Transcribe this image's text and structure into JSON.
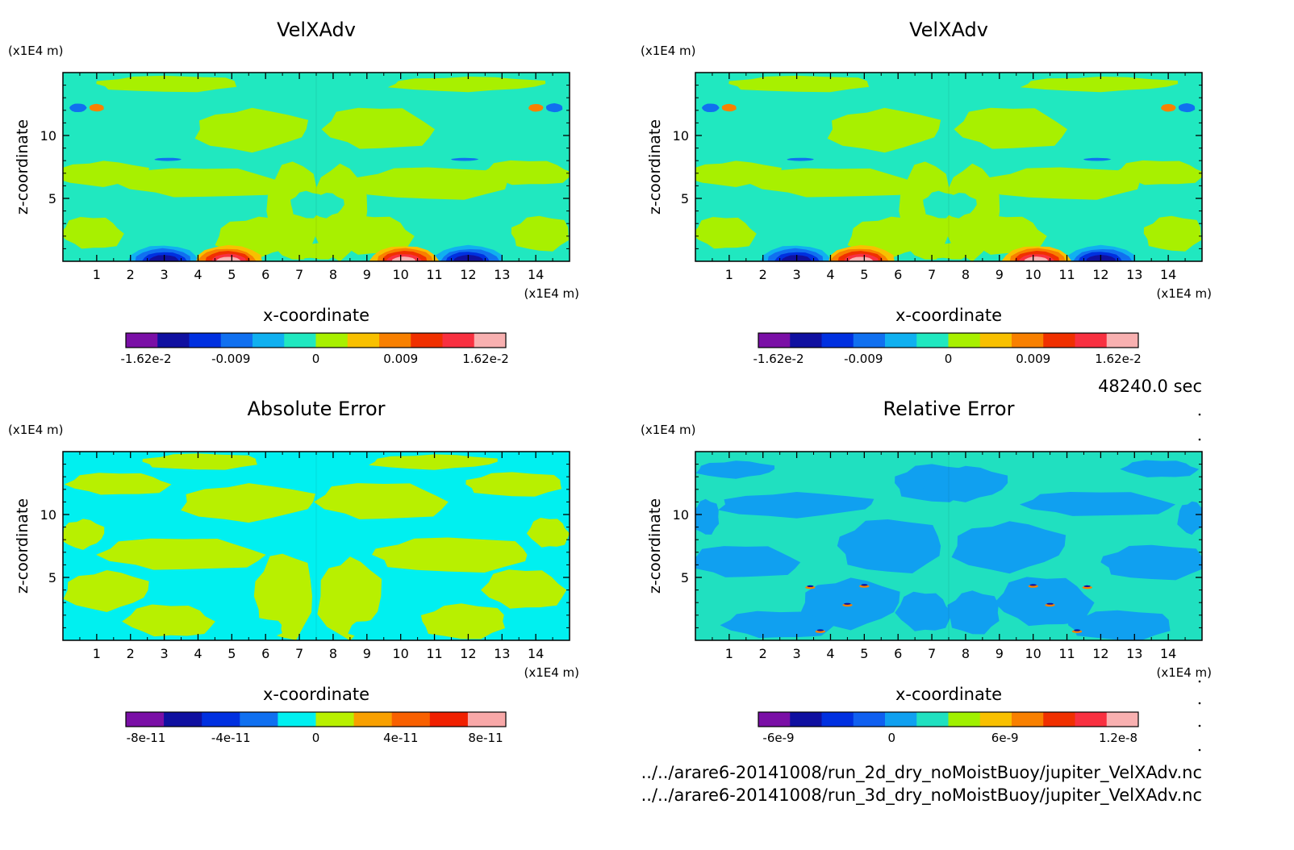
{
  "time_label": "48240.0 sec",
  "files": [
    "../../arare6-20141008/run_2d_dry_noMoistBuoy/jupiter_VelXAdv.nc",
    "../../arare6-20141008/run_3d_dry_noMoistBuoy/jupiter_VelXAdv.nc"
  ],
  "chart_data": [
    {
      "type": "heatmap",
      "title": "VelXAdv",
      "xlabel": "x-coordinate",
      "ylabel": "z-coordinate",
      "x_unit": "(x1E4 m)",
      "y_unit": "(x1E4 m)",
      "xlim": [
        0,
        15
      ],
      "ylim": [
        0,
        15
      ],
      "x_ticks": [
        "1",
        "2",
        "3",
        "4",
        "5",
        "6",
        "7",
        "8",
        "9",
        "10",
        "11",
        "12",
        "13",
        "14"
      ],
      "y_ticks": [
        "5",
        "10"
      ],
      "colorbar": {
        "colors": [
          "#7a0fa6",
          "#1010a0",
          "#0030e0",
          "#1070f0",
          "#10b0f0",
          "#20e8c0",
          "#a8f000",
          "#f8c000",
          "#f88000",
          "#f03000",
          "#f83040",
          "#f8b0b0"
        ],
        "labels": [
          "-1.62e-2",
          "-0.009",
          "0",
          "0.009",
          "1.62e-2"
        ]
      }
    },
    {
      "type": "heatmap",
      "title": "VelXAdv",
      "xlabel": "x-coordinate",
      "ylabel": "z-coordinate",
      "x_unit": "(x1E4 m)",
      "y_unit": "(x1E4 m)",
      "xlim": [
        0,
        15
      ],
      "ylim": [
        0,
        15
      ],
      "x_ticks": [
        "1",
        "2",
        "3",
        "4",
        "5",
        "6",
        "7",
        "8",
        "9",
        "10",
        "11",
        "12",
        "13",
        "14"
      ],
      "y_ticks": [
        "5",
        "10"
      ],
      "colorbar": {
        "colors": [
          "#7a0fa6",
          "#1010a0",
          "#0030e0",
          "#1070f0",
          "#10b0f0",
          "#20e8c0",
          "#a8f000",
          "#f8c000",
          "#f88000",
          "#f03000",
          "#f83040",
          "#f8b0b0"
        ],
        "labels": [
          "-1.62e-2",
          "-0.009",
          "0",
          "0.009",
          "1.62e-2"
        ]
      }
    },
    {
      "type": "heatmap",
      "title": "Absolute Error",
      "xlabel": "x-coordinate",
      "ylabel": "z-coordinate",
      "x_unit": "(x1E4 m)",
      "y_unit": "(x1E4 m)",
      "xlim": [
        0,
        15
      ],
      "ylim": [
        0,
        15
      ],
      "x_ticks": [
        "1",
        "2",
        "3",
        "4",
        "5",
        "6",
        "7",
        "8",
        "9",
        "10",
        "11",
        "12",
        "13",
        "14"
      ],
      "y_ticks": [
        "5",
        "10"
      ],
      "colorbar": {
        "colors": [
          "#7a0fa6",
          "#1010a0",
          "#0030e0",
          "#1070f0",
          "#00f0f0",
          "#b8f000",
          "#f8a000",
          "#f86000",
          "#f02000",
          "#f8a8a8"
        ],
        "labels": [
          "-8e-11",
          "-4e-11",
          "0",
          "4e-11",
          "8e-11"
        ]
      }
    },
    {
      "type": "heatmap",
      "title": "Relative Error",
      "xlabel": "x-coordinate",
      "ylabel": "z-coordinate",
      "x_unit": "(x1E4 m)",
      "y_unit": "(x1E4 m)",
      "xlim": [
        0,
        15
      ],
      "ylim": [
        0,
        15
      ],
      "x_ticks": [
        "1",
        "2",
        "3",
        "4",
        "5",
        "6",
        "7",
        "8",
        "9",
        "10",
        "11",
        "12",
        "13",
        "14"
      ],
      "y_ticks": [
        "5",
        "10"
      ],
      "colorbar": {
        "colors": [
          "#7a0fa6",
          "#1010a0",
          "#0030e0",
          "#1060f0",
          "#10a0f0",
          "#20e0c0",
          "#a0f000",
          "#f8c000",
          "#f88000",
          "#f03000",
          "#f83040",
          "#f8b0b0"
        ],
        "labels": [
          "-6e-9",
          "0",
          "6e-9",
          "1.2e-8"
        ]
      }
    }
  ]
}
